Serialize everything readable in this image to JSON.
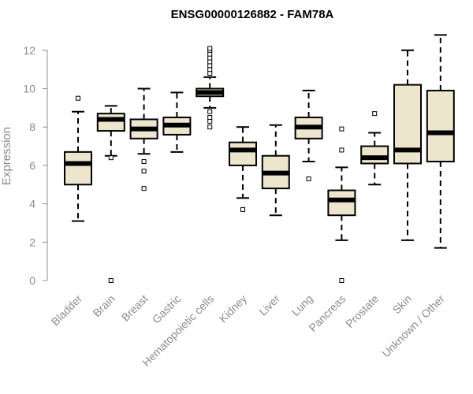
{
  "chart_data": {
    "type": "boxplot",
    "title": "ENSG00000126882 - FAM78A",
    "xlabel": "",
    "ylabel": "Expression",
    "ylim": [
      0,
      12.8
    ],
    "yticks": [
      0,
      2,
      4,
      6,
      8,
      10,
      12
    ],
    "grid": false,
    "colors": {
      "box_fill": "#ede6cc",
      "box_stroke": "#000000",
      "axis": "#8c8c8c",
      "text": "#8c8c8c"
    },
    "categories": [
      "Bladder",
      "Brain",
      "Breast",
      "Gastric",
      "Hematopoietic cells",
      "Kidney",
      "Liver",
      "Lung",
      "Pancreas",
      "Prostate",
      "Skin",
      "Unknown / Other"
    ],
    "boxes": [
      {
        "name": "Bladder",
        "whisker_low": 3.1,
        "q1": 5.0,
        "median": 6.1,
        "q3": 6.7,
        "whisker_high": 8.8,
        "outliers": [
          9.5
        ]
      },
      {
        "name": "Brain",
        "whisker_low": 6.5,
        "q1": 7.8,
        "median": 8.4,
        "q3": 8.7,
        "whisker_high": 9.1,
        "outliers": [
          6.4,
          0.0
        ]
      },
      {
        "name": "Breast",
        "whisker_low": 6.6,
        "q1": 7.4,
        "median": 7.9,
        "q3": 8.4,
        "whisker_high": 10.0,
        "outliers": [
          6.2,
          5.7,
          4.8
        ]
      },
      {
        "name": "Gastric",
        "whisker_low": 6.7,
        "q1": 7.6,
        "median": 8.1,
        "q3": 8.5,
        "whisker_high": 9.8,
        "outliers": []
      },
      {
        "name": "Hematopoietic cells",
        "whisker_low": 9.0,
        "q1": 9.6,
        "median": 9.8,
        "q3": 10.0,
        "whisker_high": 10.6,
        "outliers": [
          8.0,
          8.3,
          8.5,
          8.8,
          10.8,
          11.0,
          11.2,
          11.4,
          11.6,
          11.8,
          12.0,
          12.1
        ]
      },
      {
        "name": "Kidney",
        "whisker_low": 4.3,
        "q1": 6.0,
        "median": 6.8,
        "q3": 7.2,
        "whisker_high": 8.0,
        "outliers": [
          3.7
        ]
      },
      {
        "name": "Liver",
        "whisker_low": 3.4,
        "q1": 4.8,
        "median": 5.6,
        "q3": 6.5,
        "whisker_high": 8.1,
        "outliers": []
      },
      {
        "name": "Lung",
        "whisker_low": 6.2,
        "q1": 7.4,
        "median": 8.0,
        "q3": 8.5,
        "whisker_high": 9.9,
        "outliers": [
          5.3
        ]
      },
      {
        "name": "Pancreas",
        "whisker_low": 2.1,
        "q1": 3.4,
        "median": 4.2,
        "q3": 4.7,
        "whisker_high": 5.9,
        "outliers": [
          6.8,
          7.9,
          0.0
        ]
      },
      {
        "name": "Prostate",
        "whisker_low": 5.0,
        "q1": 6.1,
        "median": 6.4,
        "q3": 7.0,
        "whisker_high": 7.7,
        "outliers": [
          8.7
        ]
      },
      {
        "name": "Skin",
        "whisker_low": 2.1,
        "q1": 6.1,
        "median": 6.8,
        "q3": 10.2,
        "whisker_high": 12.0,
        "outliers": []
      },
      {
        "name": "Unknown / Other",
        "whisker_low": 1.7,
        "q1": 6.2,
        "median": 7.7,
        "q3": 9.9,
        "whisker_high": 12.8,
        "outliers": []
      }
    ]
  }
}
